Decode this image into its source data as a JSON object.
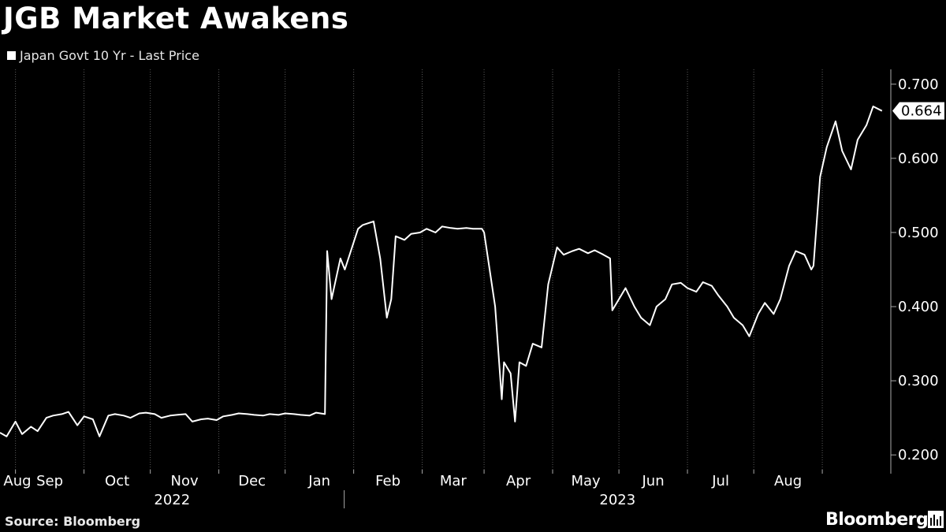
{
  "header": {
    "title": "JGB Market Awakens"
  },
  "footer": {
    "source": "Source: Bloomberg",
    "brand": "Bloomberg",
    "brand_icon": "bloomberg-terminal-icon"
  },
  "colors": {
    "background": "#000000",
    "line": "#ffffff",
    "grid": "#5a5a5a",
    "text": "#ffffff"
  },
  "chart_data": {
    "type": "line",
    "title": "JGB Market Awakens",
    "legend": "top-left",
    "grid": true,
    "series": [
      {
        "name": "Japan Govt 10 Yr - Last Price",
        "x": [
          "2022-07-25",
          "2022-07-28",
          "2022-08-01",
          "2022-08-04",
          "2022-08-08",
          "2022-08-11",
          "2022-08-15",
          "2022-08-18",
          "2022-08-22",
          "2022-08-25",
          "2022-08-29",
          "2022-09-01",
          "2022-09-05",
          "2022-09-08",
          "2022-09-12",
          "2022-09-15",
          "2022-09-19",
          "2022-09-22",
          "2022-09-26",
          "2022-09-29",
          "2022-10-03",
          "2022-10-06",
          "2022-10-10",
          "2022-10-13",
          "2022-10-17",
          "2022-10-20",
          "2022-10-24",
          "2022-10-27",
          "2022-10-31",
          "2022-11-03",
          "2022-11-07",
          "2022-11-10",
          "2022-11-14",
          "2022-11-17",
          "2022-11-21",
          "2022-11-24",
          "2022-11-28",
          "2022-12-01",
          "2022-12-05",
          "2022-12-08",
          "2022-12-12",
          "2022-12-15",
          "2022-12-19",
          "2022-12-20",
          "2022-12-22",
          "2022-12-26",
          "2022-12-28",
          "2023-01-03",
          "2023-01-05",
          "2023-01-10",
          "2023-01-13",
          "2023-01-16",
          "2023-01-18",
          "2023-01-20",
          "2023-01-24",
          "2023-01-27",
          "2023-01-31",
          "2023-02-03",
          "2023-02-07",
          "2023-02-10",
          "2023-02-14",
          "2023-02-17",
          "2023-02-21",
          "2023-02-24",
          "2023-02-28",
          "2023-03-01",
          "2023-03-06",
          "2023-03-09",
          "2023-03-10",
          "2023-03-13",
          "2023-03-15",
          "2023-03-17",
          "2023-03-20",
          "2023-03-23",
          "2023-03-27",
          "2023-03-30",
          "2023-04-03",
          "2023-04-06",
          "2023-04-10",
          "2023-04-13",
          "2023-04-17",
          "2023-04-20",
          "2023-04-24",
          "2023-04-27",
          "2023-04-28",
          "2023-05-01",
          "2023-05-04",
          "2023-05-08",
          "2023-05-11",
          "2023-05-15",
          "2023-05-18",
          "2023-05-22",
          "2023-05-25",
          "2023-05-29",
          "2023-06-01",
          "2023-06-05",
          "2023-06-08",
          "2023-06-12",
          "2023-06-15",
          "2023-06-19",
          "2023-06-22",
          "2023-06-26",
          "2023-06-29",
          "2023-07-03",
          "2023-07-06",
          "2023-07-10",
          "2023-07-13",
          "2023-07-17",
          "2023-07-20",
          "2023-07-24",
          "2023-07-27",
          "2023-07-28",
          "2023-07-31",
          "2023-08-03",
          "2023-08-07",
          "2023-08-10",
          "2023-08-14",
          "2023-08-17",
          "2023-08-21",
          "2023-08-24",
          "2023-08-28"
        ],
        "values": [
          0.23,
          0.225,
          0.245,
          0.228,
          0.238,
          0.232,
          0.25,
          0.253,
          0.255,
          0.258,
          0.24,
          0.252,
          0.248,
          0.225,
          0.253,
          0.255,
          0.253,
          0.25,
          0.256,
          0.257,
          0.255,
          0.25,
          0.253,
          0.254,
          0.255,
          0.245,
          0.248,
          0.249,
          0.247,
          0.252,
          0.254,
          0.256,
          0.255,
          0.254,
          0.253,
          0.255,
          0.254,
          0.256,
          0.255,
          0.254,
          0.253,
          0.257,
          0.255,
          0.475,
          0.41,
          0.465,
          0.45,
          0.505,
          0.51,
          0.515,
          0.465,
          0.385,
          0.41,
          0.495,
          0.49,
          0.498,
          0.5,
          0.505,
          0.5,
          0.508,
          0.506,
          0.505,
          0.506,
          0.505,
          0.505,
          0.5,
          0.4,
          0.275,
          0.325,
          0.31,
          0.245,
          0.325,
          0.32,
          0.35,
          0.345,
          0.43,
          0.48,
          0.47,
          0.475,
          0.478,
          0.472,
          0.476,
          0.47,
          0.465,
          0.395,
          0.41,
          0.425,
          0.4,
          0.385,
          0.375,
          0.4,
          0.41,
          0.43,
          0.432,
          0.425,
          0.42,
          0.433,
          0.428,
          0.415,
          0.4,
          0.385,
          0.375,
          0.36,
          0.39,
          0.405,
          0.39,
          0.41,
          0.455,
          0.475,
          0.47,
          0.45,
          0.455,
          0.575,
          0.615,
          0.65,
          0.61,
          0.585,
          0.625,
          0.645,
          0.67,
          0.664
        ],
        "last_value_label": "0.664"
      }
    ],
    "ylim": [
      0.18,
      0.72
    ],
    "y_ticks": [
      0.2,
      0.3,
      0.4,
      0.5,
      0.6,
      0.7
    ],
    "y_tick_labels": [
      "0.200",
      "0.300",
      "0.400",
      "0.500",
      "0.600",
      "0.700"
    ],
    "x_month_labels": [
      "Aug",
      "Sep",
      "Oct",
      "Nov",
      "Dec",
      "Jan",
      "Feb",
      "Mar",
      "Apr",
      "May",
      "Jun",
      "Jul",
      "Aug"
    ],
    "x_year_labels": [
      "2022",
      "2023"
    ],
    "xlim": [
      "2022-07-25",
      "2023-09-01"
    ]
  }
}
